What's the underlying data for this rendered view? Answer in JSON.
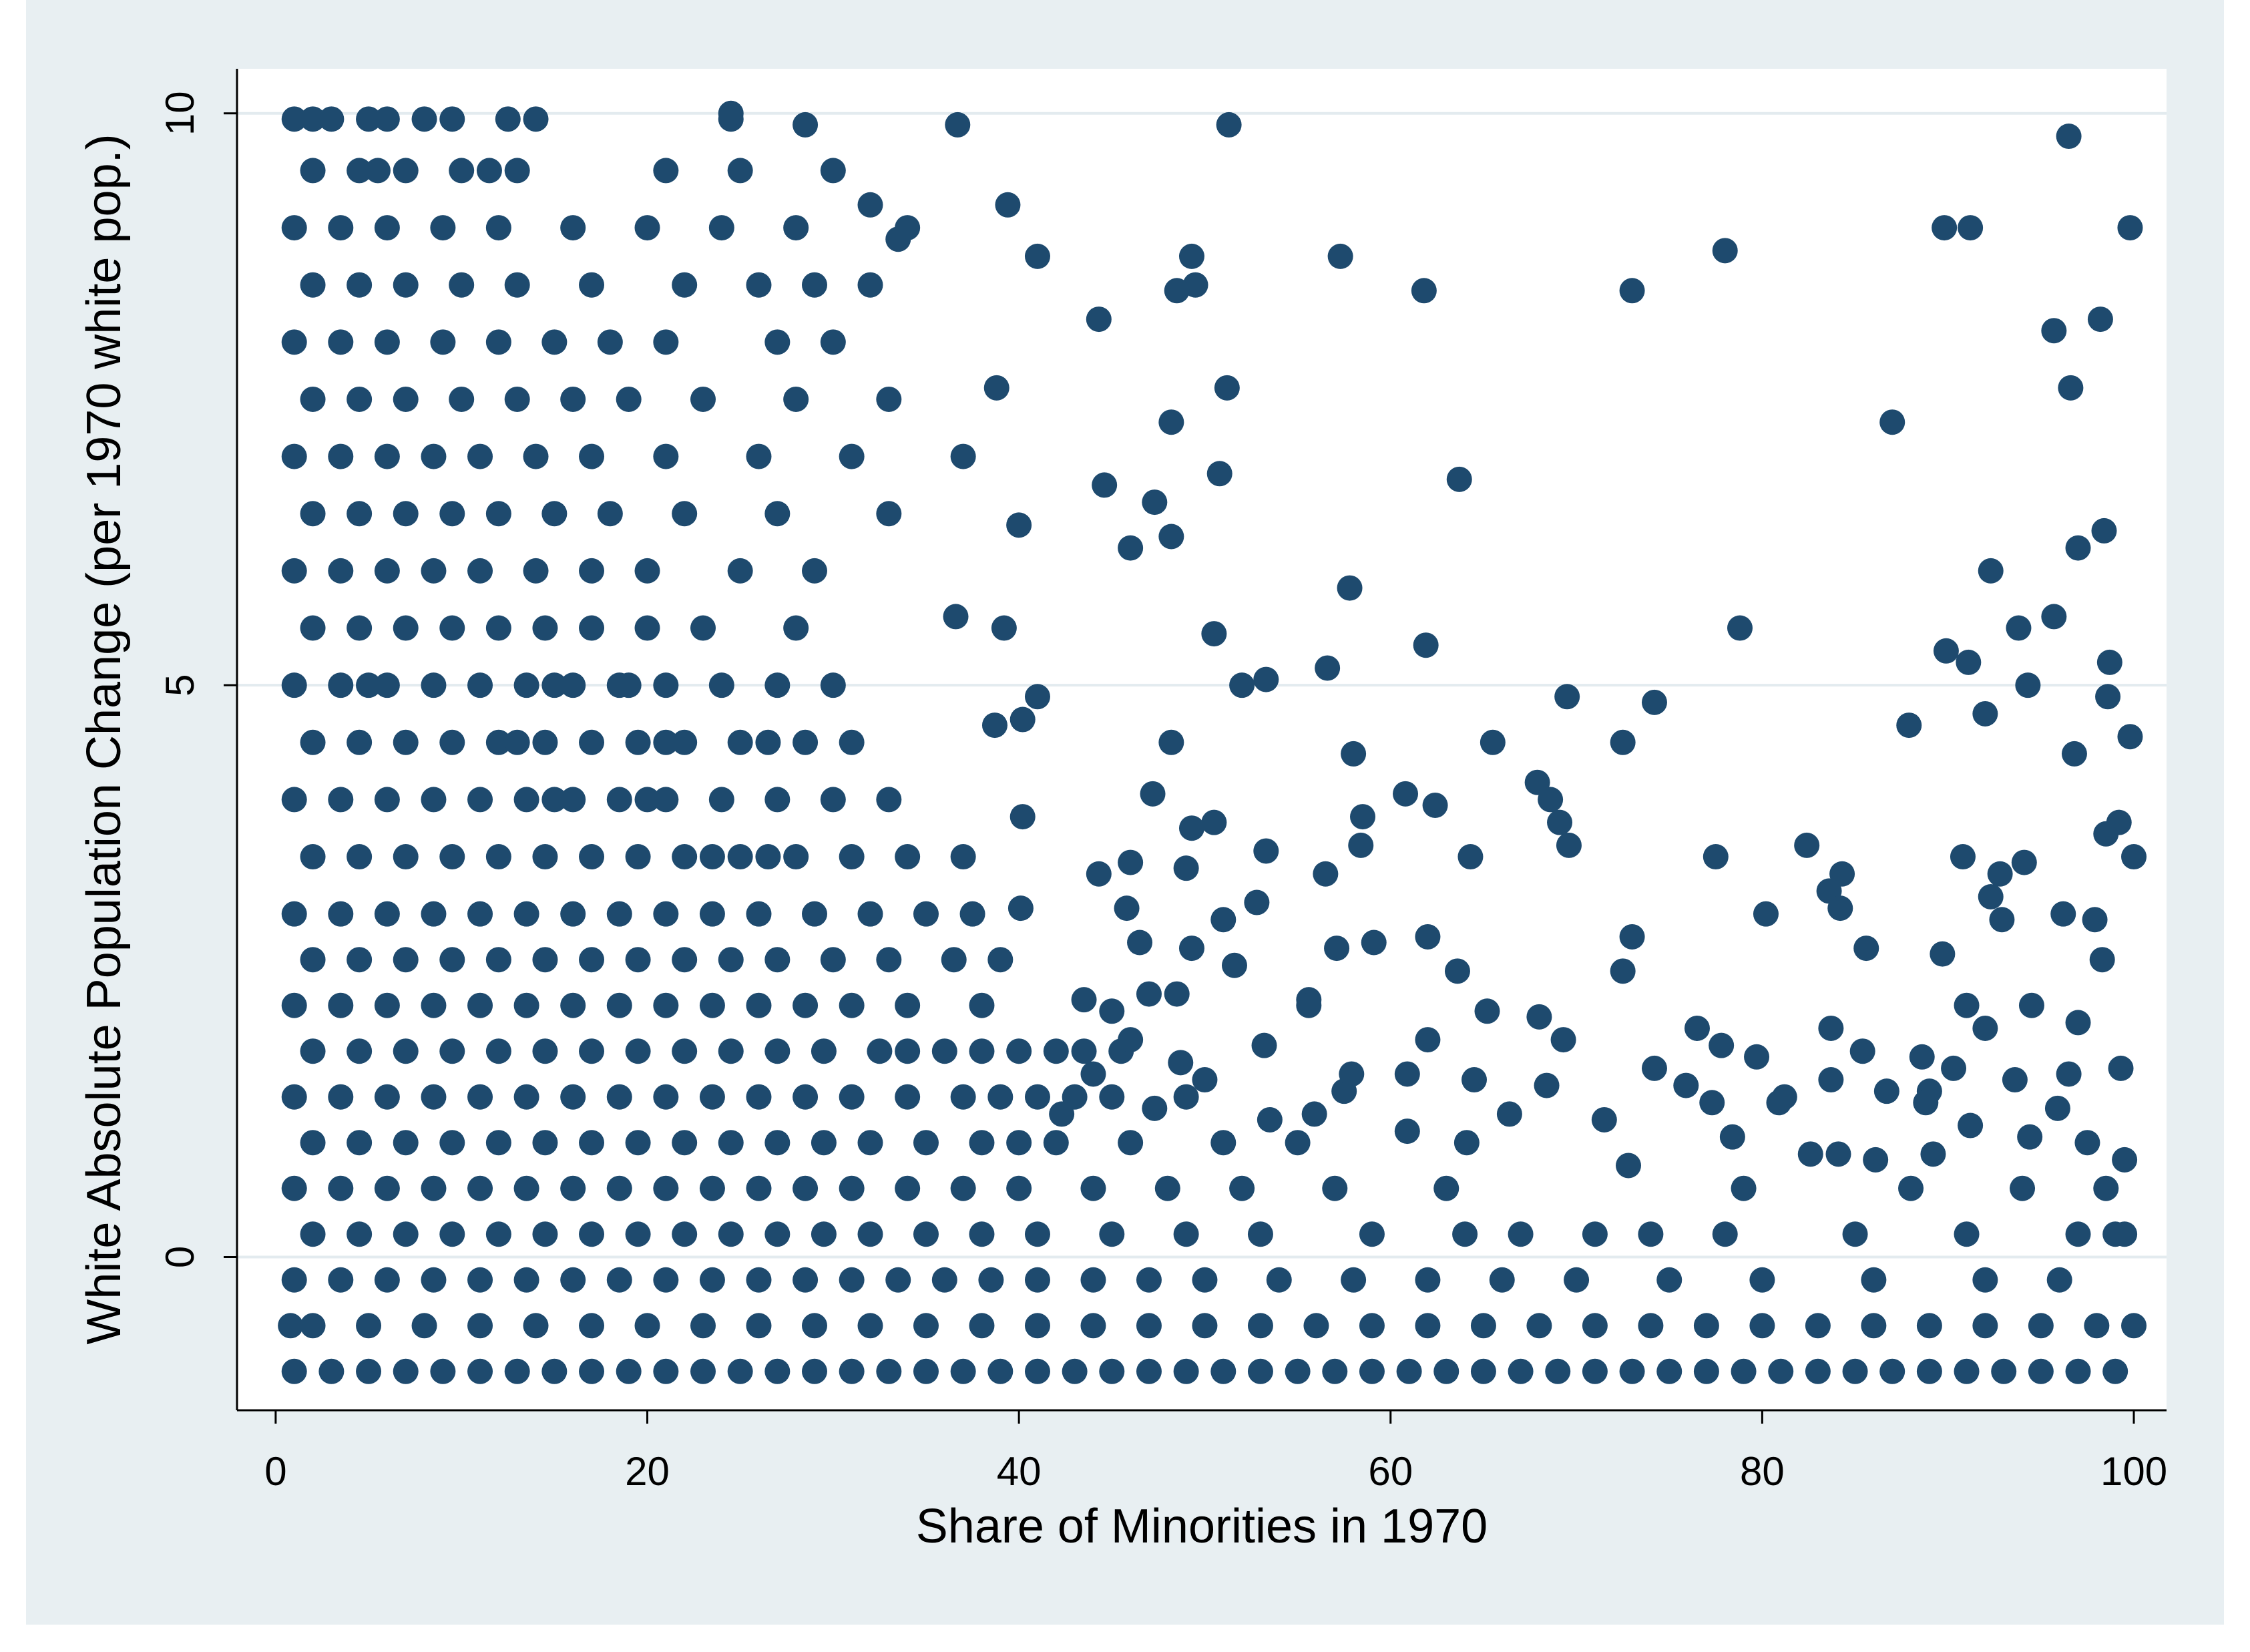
{
  "chart_data": {
    "type": "scatter",
    "xlabel": "Share of Minorities in 1970",
    "ylabel": "White Absolute Population Change (per 1970 white pop.)",
    "color": "#1e4a6e",
    "xlim": [
      -2.08,
      101.76
    ],
    "ylim": [
      -1.34,
      10.39
    ],
    "xticks": [
      0,
      20,
      40,
      60,
      80,
      100
    ],
    "yticks": [
      0,
      5,
      10
    ],
    "grid": true,
    "x": [
      1,
      3,
      5,
      7,
      9,
      11,
      13,
      15,
      17,
      19,
      21,
      23,
      25,
      27,
      29,
      31,
      33,
      35,
      37,
      39,
      41,
      43,
      45,
      47,
      49,
      51,
      53,
      55,
      57,
      59,
      61,
      63,
      65,
      67,
      69,
      71,
      73,
      75,
      77,
      79,
      81,
      83,
      85,
      87,
      89,
      91,
      93,
      95,
      97,
      99,
      0.8,
      2,
      5,
      8,
      11,
      14,
      17,
      20,
      23,
      26,
      29,
      32,
      35,
      38,
      41,
      44,
      47,
      50,
      53,
      56,
      59,
      62,
      65,
      68,
      71,
      74,
      77,
      80,
      83,
      86,
      89,
      92,
      95,
      98,
      100,
      1,
      3.5,
      6,
      8.5,
      11,
      13.5,
      16,
      18.5,
      21,
      23.5,
      26,
      28.5,
      31,
      33.5,
      36,
      38.5,
      41,
      44,
      47,
      50,
      54,
      58,
      62,
      66,
      70,
      75,
      80,
      86,
      92,
      96,
      2,
      4.5,
      7,
      9.5,
      12,
      14.5,
      17,
      19.5,
      22,
      24.5,
      27,
      29.5,
      32,
      35,
      38,
      41,
      45,
      49,
      53,
      59,
      64,
      67,
      71,
      74,
      78,
      85,
      91,
      97,
      99,
      99.5,
      1,
      3.5,
      6,
      8.5,
      11,
      13.5,
      16,
      18.5,
      21,
      23.5,
      26,
      28.5,
      31,
      34,
      37,
      40,
      44,
      48,
      52,
      57,
      63,
      79,
      88,
      94,
      98.5,
      2,
      4.5,
      7,
      9.5,
      12,
      14.5,
      17,
      19.5,
      22,
      24.5,
      27,
      29.5,
      32,
      35,
      38,
      40,
      42,
      46,
      51,
      55,
      1,
      3.5,
      6,
      8.5,
      11,
      13.5,
      16,
      18.5,
      21,
      23.5,
      26,
      28.5,
      31,
      34,
      37,
      39,
      41,
      43,
      45,
      49,
      2,
      4.5,
      7,
      9.5,
      12,
      14.5,
      17,
      19.5,
      22,
      24.5,
      27,
      29.5,
      32.5,
      34,
      36,
      38,
      40,
      42,
      43.5,
      45.5,
      1,
      3.5,
      6,
      8.5,
      11,
      13.5,
      16,
      18.5,
      21,
      23.5,
      26,
      28.5,
      31,
      34,
      38,
      2,
      4.5,
      7,
      9.5,
      12,
      14.5,
      17,
      19.5,
      22,
      24.5,
      27,
      30,
      33,
      36.5,
      39,
      1,
      3.5,
      6,
      8.5,
      11,
      13.5,
      16,
      18.5,
      21,
      23.5,
      26,
      29,
      32,
      35,
      37.5,
      2,
      4.5,
      7,
      9.5,
      12,
      14.5,
      17,
      19.5,
      22,
      25,
      28,
      31,
      34,
      23.5,
      26.5,
      1,
      3.5,
      6,
      8.5,
      11,
      13.5,
      16,
      18.5,
      21,
      24,
      27,
      30,
      33,
      20,
      15,
      2,
      4.5,
      7,
      9.5,
      12,
      14.5,
      17,
      19.5,
      22,
      25,
      28.5,
      31,
      13,
      26.5,
      21,
      1,
      3.5,
      6,
      8.5,
      11,
      13.5,
      16,
      18.5,
      21,
      24,
      27,
      30,
      15,
      19,
      5,
      2,
      4.5,
      7,
      9.5,
      12,
      14.5,
      17,
      20,
      23,
      28,
      1,
      3.5,
      6,
      8.5,
      11,
      14,
      17,
      20,
      25,
      29,
      2,
      4.5,
      7,
      9.5,
      12,
      15,
      18,
      22,
      27,
      33,
      1,
      3.5,
      6,
      8.5,
      11,
      14,
      17,
      21,
      26,
      31,
      2,
      4.5,
      7,
      10,
      13,
      16,
      19,
      23,
      28,
      33,
      1,
      3.5,
      6,
      9,
      12,
      15,
      18,
      21,
      27,
      30,
      2,
      4.5,
      7,
      10,
      13,
      17,
      22,
      26,
      29,
      32,
      1,
      3.5,
      6,
      9,
      12,
      16,
      20,
      24,
      34,
      28,
      2,
      4.5,
      7,
      10,
      13,
      21,
      25,
      30,
      11.5,
      5.5,
      1,
      3,
      6,
      8,
      12.5,
      14,
      24.5,
      2,
      9.5,
      5,
      36.7,
      51.3,
      96.5,
      89.8,
      91.2,
      99.8,
      78,
      57.3,
      61.8,
      73,
      44.3,
      98.2,
      95.7,
      96.6,
      87,
      48.2,
      50.8,
      63.7,
      44.6,
      47.3,
      97,
      98.4,
      92.3,
      57.8,
      95.7,
      78.8,
      93.8,
      61.9,
      89.9,
      91.1,
      98.7,
      56.6,
      53.3,
      94.3,
      69.5,
      74.2,
      98.6,
      87.9,
      92,
      72.5,
      65.5,
      58,
      99.8,
      96.8,
      67.9,
      68.6,
      60.8,
      62.4,
      47.2,
      58.5,
      69.1,
      99.2,
      98.5,
      82.4,
      69.6,
      53.3,
      58.4,
      64.3,
      77.5,
      90.8,
      100,
      94.1,
      56.5,
      92.8,
      84.3,
      83.6,
      96.2,
      80.2,
      84.2,
      92.3,
      92.9,
      97.9,
      59.1,
      57.1,
      62,
      85.6,
      89.7,
      98.3,
      72.5,
      63.6,
      73,
      55.6,
      94.5,
      91,
      76.5,
      92,
      97,
      60.9,
      62,
      65.2,
      68,
      69.3,
      77.8,
      79.7,
      83.7,
      85.4,
      88.6,
      90.3,
      93.6,
      96.5,
      99.3,
      64.5,
      68.4,
      74.2,
      75.9,
      81.2,
      83.7,
      86.7,
      89,
      55.9,
      57.5,
      57.9,
      66.4,
      71.5,
      77.3,
      80.9,
      88.8,
      91.2,
      94.4,
      95.9,
      60.9,
      64.1,
      72.8,
      78.4,
      82.6,
      84.1,
      86.1,
      89.2,
      97.5,
      99.5,
      39.4,
      41,
      33.5,
      32,
      28.5,
      24.5,
      38.8,
      37,
      40,
      36.6,
      39.2,
      40.2,
      41,
      38.7,
      40.2,
      37,
      40.1,
      44.3,
      46,
      49,
      50.5,
      49.3,
      49.3,
      51,
      46.5,
      48.5,
      51.6,
      43.5,
      47,
      45,
      49.5,
      48.5,
      49.3,
      50.5,
      52,
      48.2,
      45.8,
      51.2,
      48.2,
      46,
      52.8,
      55.6,
      53.2,
      50,
      46,
      48.7,
      53.5,
      44,
      42.3,
      47.3
    ],
    "values": [
      -1,
      -1,
      -1,
      -1,
      -1,
      -1,
      -1,
      -1,
      -1,
      -1,
      -1,
      -1,
      -1,
      -1,
      -1,
      -1,
      -1,
      -1,
      -1,
      -1,
      -1,
      -1,
      -1,
      -1,
      -1,
      -1,
      -1,
      -1,
      -1,
      -1,
      -1,
      -1,
      -1,
      -1,
      -1,
      -1,
      -1,
      -1,
      -1,
      -1,
      -1,
      -1,
      -1,
      -1,
      -1,
      -1,
      -1,
      -1,
      -1,
      -1,
      -0.6,
      -0.6,
      -0.6,
      -0.6,
      -0.6,
      -0.6,
      -0.6,
      -0.6,
      -0.6,
      -0.6,
      -0.6,
      -0.6,
      -0.6,
      -0.6,
      -0.6,
      -0.6,
      -0.6,
      -0.6,
      -0.6,
      -0.6,
      -0.6,
      -0.6,
      -0.6,
      -0.6,
      -0.6,
      -0.6,
      -0.6,
      -0.6,
      -0.6,
      -0.6,
      -0.6,
      -0.6,
      -0.6,
      -0.6,
      -0.6,
      -0.2,
      -0.2,
      -0.2,
      -0.2,
      -0.2,
      -0.2,
      -0.2,
      -0.2,
      -0.2,
      -0.2,
      -0.2,
      -0.2,
      -0.2,
      -0.2,
      -0.2,
      -0.2,
      -0.2,
      -0.2,
      -0.2,
      -0.2,
      -0.2,
      -0.2,
      -0.2,
      -0.2,
      -0.2,
      -0.2,
      -0.2,
      -0.2,
      -0.2,
      -0.2,
      0.2,
      0.2,
      0.2,
      0.2,
      0.2,
      0.2,
      0.2,
      0.2,
      0.2,
      0.2,
      0.2,
      0.2,
      0.2,
      0.2,
      0.2,
      0.2,
      0.2,
      0.2,
      0.2,
      0.2,
      0.2,
      0.2,
      0.2,
      0.2,
      0.2,
      0.2,
      0.2,
      0.2,
      0.2,
      0.2,
      0.6,
      0.6,
      0.6,
      0.6,
      0.6,
      0.6,
      0.6,
      0.6,
      0.6,
      0.6,
      0.6,
      0.6,
      0.6,
      0.6,
      0.6,
      0.6,
      0.6,
      0.6,
      0.6,
      0.6,
      0.6,
      0.6,
      0.6,
      0.6,
      0.6,
      1,
      1,
      1,
      1,
      1,
      1,
      1,
      1,
      1,
      1,
      1,
      1,
      1,
      1,
      1,
      1,
      1,
      1,
      1,
      1,
      1.4,
      1.4,
      1.4,
      1.4,
      1.4,
      1.4,
      1.4,
      1.4,
      1.4,
      1.4,
      1.4,
      1.4,
      1.4,
      1.4,
      1.4,
      1.4,
      1.4,
      1.4,
      1.4,
      1.4,
      1.8,
      1.8,
      1.8,
      1.8,
      1.8,
      1.8,
      1.8,
      1.8,
      1.8,
      1.8,
      1.8,
      1.8,
      1.8,
      1.8,
      1.8,
      1.8,
      1.8,
      1.8,
      1.8,
      1.8,
      2.2,
      2.2,
      2.2,
      2.2,
      2.2,
      2.2,
      2.2,
      2.2,
      2.2,
      2.2,
      2.2,
      2.2,
      2.2,
      2.2,
      2.2,
      2.6,
      2.6,
      2.6,
      2.6,
      2.6,
      2.6,
      2.6,
      2.6,
      2.6,
      2.6,
      2.6,
      2.6,
      2.6,
      2.6,
      2.6,
      3,
      3,
      3,
      3,
      3,
      3,
      3,
      3,
      3,
      3,
      3,
      3,
      3,
      3,
      3,
      3.5,
      3.5,
      3.5,
      3.5,
      3.5,
      3.5,
      3.5,
      3.5,
      3.5,
      3.5,
      3.5,
      3.5,
      3.5,
      3.5,
      3.5,
      4,
      4,
      4,
      4,
      4,
      4,
      4,
      4,
      4,
      4,
      4,
      4,
      4,
      4,
      4,
      4.5,
      4.5,
      4.5,
      4.5,
      4.5,
      4.5,
      4.5,
      4.5,
      4.5,
      4.5,
      4.5,
      4.5,
      4.5,
      4.5,
      4.5,
      5,
      5,
      5,
      5,
      5,
      5,
      5,
      5,
      5,
      5,
      5,
      5,
      5,
      5,
      5,
      5.5,
      5.5,
      5.5,
      5.5,
      5.5,
      5.5,
      5.5,
      5.5,
      5.5,
      5.5,
      6,
      6,
      6,
      6,
      6,
      6,
      6,
      6,
      6,
      6,
      6.5,
      6.5,
      6.5,
      6.5,
      6.5,
      6.5,
      6.5,
      6.5,
      6.5,
      6.5,
      7,
      7,
      7,
      7,
      7,
      7,
      7,
      7,
      7,
      7,
      7.5,
      7.5,
      7.5,
      7.5,
      7.5,
      7.5,
      7.5,
      7.5,
      7.5,
      7.5,
      8,
      8,
      8,
      8,
      8,
      8,
      8,
      8,
      8,
      8,
      8.5,
      8.5,
      8.5,
      8.5,
      8.5,
      8.5,
      8.5,
      8.5,
      8.5,
      8.5,
      9,
      9,
      9,
      9,
      9,
      9,
      9,
      9,
      9,
      9,
      9.5,
      9.5,
      9.5,
      9.5,
      9.5,
      9.5,
      9.5,
      9.5,
      9.5,
      9.5,
      9.95,
      9.95,
      9.95,
      9.95,
      9.95,
      9.95,
      9.95,
      9.95,
      9.95,
      9.95,
      9.9,
      9.9,
      9.8,
      9,
      9,
      9,
      8.8,
      8.75,
      8.45,
      8.45,
      8.2,
      8.2,
      8.1,
      7.6,
      7.3,
      7.3,
      6.85,
      6.8,
      6.75,
      6.6,
      6.2,
      6.35,
      6,
      5.85,
      5.6,
      5.5,
      5.5,
      5.35,
      5.3,
      5.2,
      5.2,
      5.15,
      5.05,
      5,
      4.9,
      4.85,
      4.9,
      4.65,
      4.75,
      4.5,
      4.5,
      4.4,
      4.55,
      4.4,
      4.15,
      4,
      4.05,
      3.95,
      4.05,
      3.85,
      3.8,
      3.8,
      3.7,
      3.6,
      3.6,
      3.55,
      3.6,
      3.5,
      3.5,
      3.5,
      3.5,
      3.45,
      3.35,
      3.35,
      3.35,
      3.2,
      3,
      3,
      3.05,
      3.15,
      2.95,
      2.95,
      2.75,
      2.7,
      2.8,
      2.7,
      2.65,
      2.6,
      2.5,
      2.5,
      2.8,
      2.25,
      2.2,
      2.2,
      2,
      2,
      2.05,
      1.6,
      1.9,
      2.15,
      2.1,
      1.9,
      1.85,
      1.75,
      2,
      1.8,
      1.75,
      1.65,
      1.55,
      1.6,
      1.65,
      1.55,
      1.5,
      1.65,
      1.5,
      1.4,
      1.55,
      1.45,
      1.45,
      1.25,
      1.45,
      1.6,
      1.25,
      1.2,
      1.35,
      1.35,
      1.35,
      1.15,
      1.05,
      1.3,
      1.1,
      1,
      0.8,
      1.05,
      0.9,
      0.9,
      0.85,
      0.9,
      1,
      0.85,
      9.2,
      8.75,
      8.9,
      9.2,
      9.9,
      10,
      7.6,
      7,
      6.4,
      5.6,
      5.5,
      4.7,
      4.9,
      4.65,
      3.85,
      3.5,
      3.05,
      3.35,
      3.45,
      3.4,
      3.8,
      3.75,
      2.7,
      2.95,
      2.75,
      2.3,
      2.55,
      2.25,
      2.3,
      2.15,
      8.5,
      8.45,
      8.75,
      5.45,
      5,
      4.5,
      3.05,
      7.6,
      6.3,
      6.2,
      3.1,
      2.2,
      1.85,
      1.55,
      1.9,
      1.7,
      1.2,
      1.6,
      1.25,
      1.3
    ]
  }
}
